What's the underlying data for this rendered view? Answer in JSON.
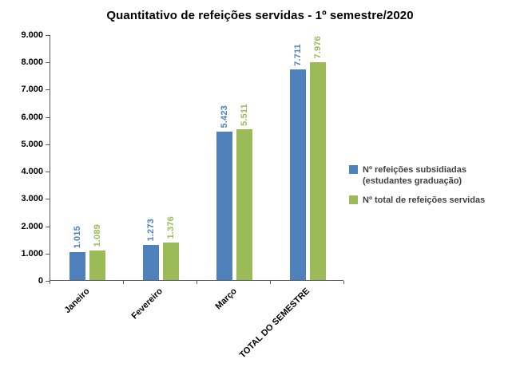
{
  "chart_data": {
    "type": "bar",
    "title": "Quantitativo de refeições servidas - 1º semestre/2020",
    "categories": [
      "Janeiro",
      "Fevereiro",
      "Março",
      "TOTAL DO SEMESTRE"
    ],
    "series": [
      {
        "name": "Nº refeições subsidiadas (estudantes graduação)",
        "color": "#4F81BD",
        "values": [
          1015,
          1273,
          5423,
          7711
        ],
        "value_labels": [
          "1.015",
          "1.273",
          "5.423",
          "7.711"
        ]
      },
      {
        "name": "Nº total de refeições servidas",
        "color": "#9BBB59",
        "values": [
          1089,
          1376,
          5511,
          7976
        ],
        "value_labels": [
          "1.089",
          "1.376",
          "5.511",
          "7.976"
        ]
      }
    ],
    "xlabel": "",
    "ylabel": "",
    "ylim": [
      0,
      9000
    ],
    "ytick_step": 1000,
    "ytick_labels": [
      "0",
      "1.000",
      "2.000",
      "3.000",
      "4.000",
      "5.000",
      "6.000",
      "7.000",
      "8.000",
      "9.000"
    ],
    "grid": false,
    "legend_position": "right",
    "axis_color": "#595959",
    "title_color": "#000000",
    "legend_text_color": "#404040"
  }
}
